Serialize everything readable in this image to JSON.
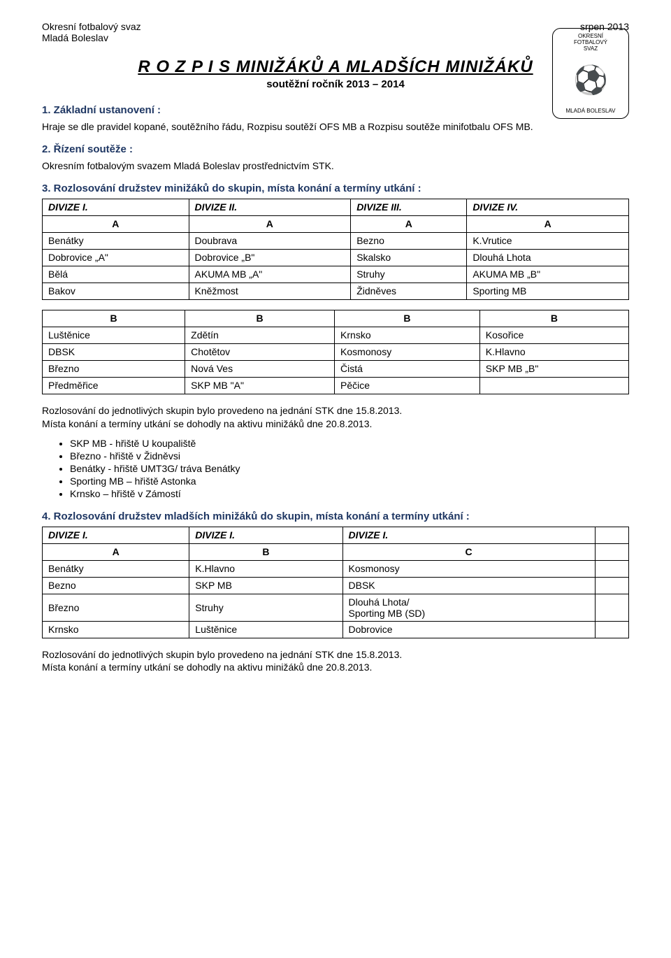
{
  "header": {
    "org_line1": "Okresní fotbalový svaz",
    "org_line2": "Mladá Boleslav",
    "date": "srpen 2013"
  },
  "logo": {
    "top1": "OKRESNÍ",
    "top2": "FOTBALOVÝ",
    "top3": "SVAZ",
    "bottom": "MLADÁ BOLESLAV"
  },
  "title": {
    "main": "R O Z P I S   MINIŽÁKŮ  A  MLADŠÍCH MINIŽÁKŮ",
    "sub": "soutěžní ročník 2013 – 2014"
  },
  "sec1": {
    "heading": "1. Základní ustanovení :",
    "text": "Hraje se dle pravidel kopané, soutěžního řádu, Rozpisu soutěží OFS MB a Rozpisu soutěže minifotbalu OFS MB."
  },
  "sec2": {
    "heading": "2. Řízení soutěže :",
    "text": "Okresním fotbalovým svazem Mladá Boleslav prostřednictvím STK."
  },
  "sec3": {
    "heading": "3. Rozlosování družstev minižáků  do skupin, místa konání a termíny utkání :",
    "table1": {
      "head": [
        "DIVIZE I.",
        "DIVIZE II.",
        "DIVIZE III.",
        "DIVIZE IV."
      ],
      "sub": [
        "A",
        "A",
        "A",
        "A"
      ],
      "rows": [
        [
          "Benátky",
          "Doubrava",
          "Bezno",
          "K.Vrutice"
        ],
        [
          "Dobrovice „A\"",
          "Dobrovice „B\"",
          "Skalsko",
          "Dlouhá Lhota"
        ],
        [
          "Bělá",
          "AKUMA MB „A\"",
          "Struhy",
          "AKUMA MB „B\""
        ],
        [
          "Bakov",
          "Kněžmost",
          "Židněves",
          "Sporting MB"
        ]
      ]
    },
    "table2": {
      "sub": [
        "B",
        "B",
        "B",
        "B"
      ],
      "rows": [
        [
          "Luštěnice",
          "Zdětín",
          "Krnsko",
          "Kosořice"
        ],
        [
          "DBSK",
          "Chotětov",
          "Kosmonosy",
          "K.Hlavno"
        ],
        [
          "Březno",
          "Nová Ves",
          "Čistá",
          "SKP MB „B\""
        ],
        [
          "Předměřice",
          "SKP MB \"A\"",
          "Pěčice",
          ""
        ]
      ]
    },
    "after1": "Rozlosování do jednotlivých skupin bylo provedeno na jednání STK  dne 15.8.2013.",
    "after2": "Místa konání a termíny utkání se dohodly na aktivu minižáků dne 20.8.2013.",
    "bullets": [
      "SKP MB - hřiště U koupaliště",
      "Březno - hřiště v Židněvsi",
      "Benátky - hřiště UMT3G/ tráva Benátky",
      "Sporting MB – hřiště Astonka",
      "Krnsko – hřiště v Zámostí"
    ]
  },
  "sec4": {
    "heading": "4. Rozlosování družstev mladších minižáků  do skupin, místa konání a termíny utkání :",
    "table": {
      "head": [
        "DIVIZE I.",
        "DIVIZE I.",
        "DIVIZE I.",
        ""
      ],
      "sub": [
        "A",
        "B",
        "C",
        ""
      ],
      "rows": [
        [
          "Benátky",
          "K.Hlavno",
          "Kosmonosy",
          ""
        ],
        [
          "Bezno",
          "SKP MB",
          "DBSK",
          ""
        ],
        [
          "Březno",
          "Struhy",
          "Dlouhá Lhota/\nSporting MB (SD)",
          ""
        ],
        [
          "Krnsko",
          "Luštěnice",
          "Dobrovice",
          ""
        ]
      ]
    },
    "after1": "Rozlosování do jednotlivých skupin bylo provedeno na jednání STK  dne 15.8.2013.",
    "after2": "Místa konání a termíny utkání se dohodly na aktivu minižáků dne 20.8.2013."
  }
}
